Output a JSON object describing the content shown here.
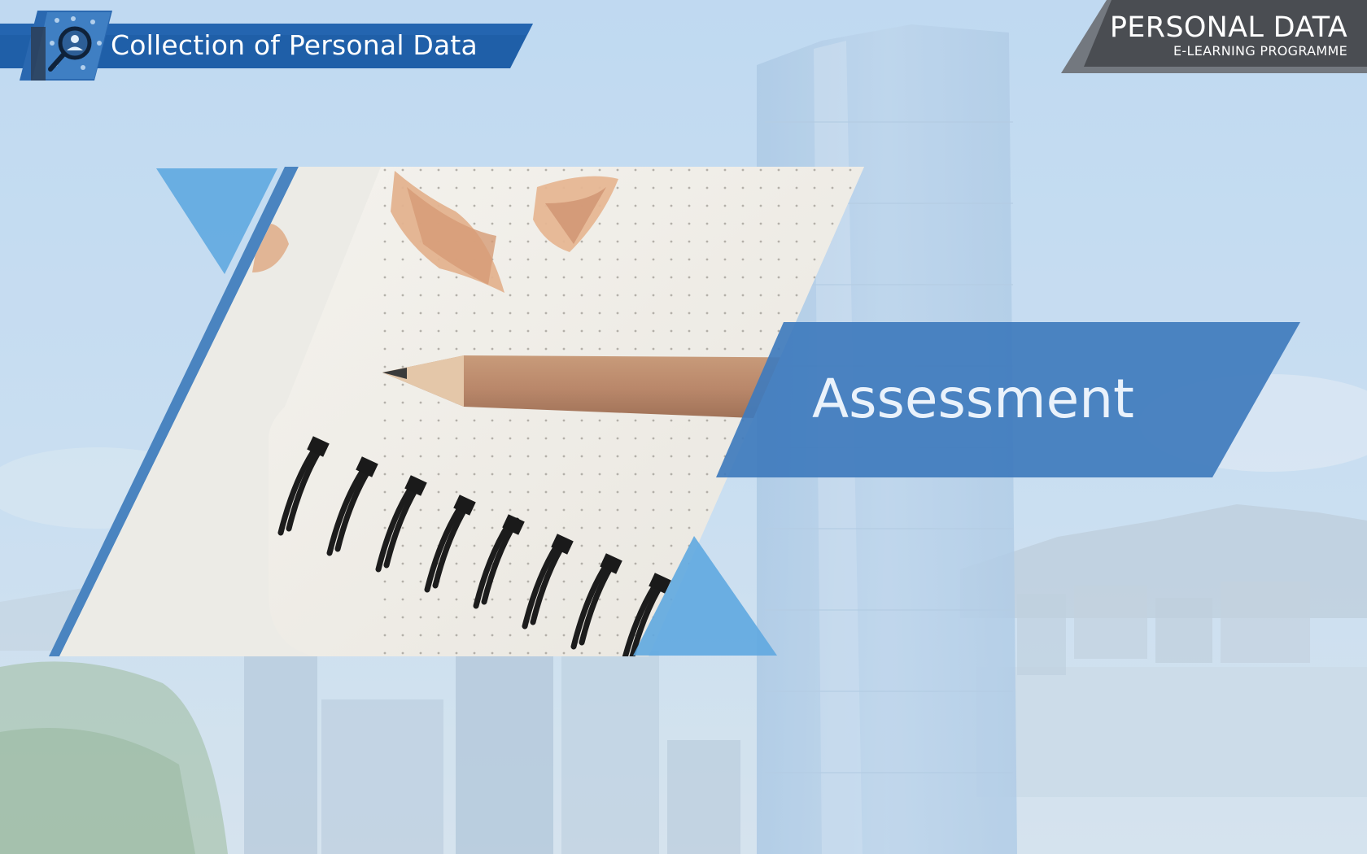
{
  "header": {
    "section_title": "Collection of Personal Data",
    "icon": "magnifier-person-icon"
  },
  "brand": {
    "title": "PERSONAL DATA",
    "subtitle": "E-LEARNING PROGRAMME"
  },
  "hero": {
    "heading": "Assessment",
    "image": "notebook-pencil-shavings-photo"
  },
  "colors": {
    "header_bar": "#1f5fa8",
    "brand_badge": "#4a4d52",
    "accent_blue": "#4a84c0",
    "triangle_blue": "#5fa9e0",
    "heading_banner": "#3f7bbd"
  }
}
